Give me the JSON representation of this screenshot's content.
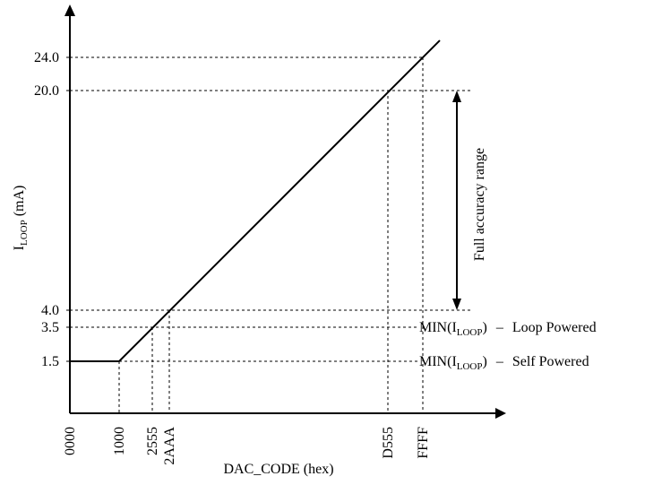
{
  "chart_data": {
    "type": "line",
    "xlabel": "DAC_CODE (hex)",
    "ylabel": {
      "main": "I",
      "sub": "LOOP",
      "unit": " (mA)"
    },
    "x_ticks": [
      "0000",
      "1000",
      "2555",
      "2AAA",
      "D555",
      "FFFF"
    ],
    "y_ticks": [
      "1.5",
      "3.5",
      "4.0",
      "20.0",
      "24.0"
    ],
    "series": [
      {
        "points": [
          {
            "x": "0000",
            "y": 1.5
          },
          {
            "x": "1000",
            "y": 1.5
          },
          {
            "x": "2555",
            "y": 3.5
          },
          {
            "x": "2AAA",
            "y": 4.0
          },
          {
            "x": "D555",
            "y": 20.0
          },
          {
            "x": "FFFF",
            "y": 24.0
          }
        ]
      }
    ],
    "annotations": [
      {
        "level": 3.5,
        "prefix": "MIN(I",
        "sub": "LOOP",
        "suffix": ")",
        "dash": "–",
        "note": "Loop Powered"
      },
      {
        "level": 1.5,
        "prefix": "MIN(I",
        "sub": "LOOP",
        "suffix": ")",
        "dash": "–",
        "note": "Self Powered"
      }
    ],
    "range_annotation": {
      "label": "Full accuracy range",
      "from": 4.0,
      "to": 20.0
    },
    "colors": {
      "line": "#000000",
      "axis": "#000000",
      "guides": "#000000"
    },
    "grid": false
  }
}
